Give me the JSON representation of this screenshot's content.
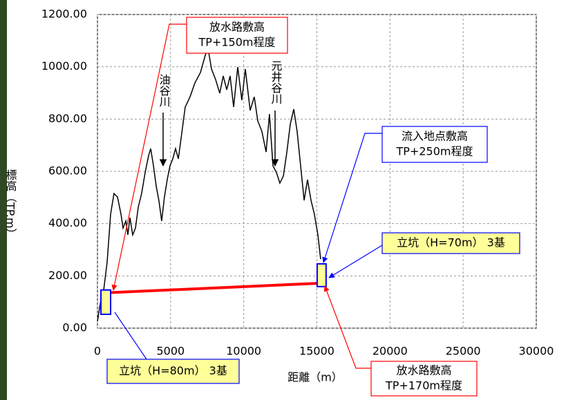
{
  "chart_data": {
    "type": "line",
    "x_label": "距離（m）",
    "y_label": "標高（TP.m）",
    "xlim": [
      0,
      30000
    ],
    "ylim": [
      0,
      1200
    ],
    "xticks": [
      0,
      5000,
      10000,
      15000,
      20000,
      25000,
      30000
    ],
    "yticks": [
      {
        "value": 0,
        "label": "0.00"
      },
      {
        "value": 200,
        "label": "200.00"
      },
      {
        "value": 400,
        "label": "400.00"
      },
      {
        "value": 600,
        "label": "600.00"
      },
      {
        "value": 800,
        "label": "800.00"
      },
      {
        "value": 1000,
        "label": "1000.00"
      },
      {
        "value": 1200,
        "label": "1200.00"
      }
    ],
    "grid": true,
    "x": [
      0,
      190,
      425,
      660,
      900,
      1130,
      1370,
      1610,
      1750,
      1940,
      2080,
      2220,
      2410,
      2600,
      2790,
      3020,
      3260,
      3500,
      3640,
      3830,
      4020,
      4200,
      4390,
      4580,
      4770,
      4960,
      5150,
      5340,
      5530,
      5720,
      6000,
      6330,
      6660,
      7040,
      7370,
      7560,
      7800,
      8080,
      8360,
      8600,
      8840,
      9070,
      9310,
      9590,
      9870,
      10110,
      10440,
      10720,
      10960,
      11240,
      11530,
      11760,
      12000,
      12240,
      12470,
      12710,
      12950,
      13180,
      13420,
      13650,
      13890,
      14130,
      14360,
      14600,
      14830,
      15070,
      15260
    ],
    "series": [
      {
        "color": "#000000",
        "values": [
          26,
          93,
          145,
          251,
          436,
          515,
          502,
          436,
          383,
          410,
          357,
          423,
          357,
          383,
          463,
          515,
          595,
          661,
          687,
          621,
          542,
          489,
          410,
          502,
          568,
          621,
          648,
          687,
          648,
          727,
          846,
          885,
          938,
          978,
          1044,
          1070,
          991,
          951,
          899,
          965,
          912,
          965,
          846,
          999,
          872,
          991,
          833,
          885,
          793,
          753,
          674,
          819,
          621,
          595,
          555,
          582,
          674,
          780,
          838,
          753,
          621,
          489,
          568,
          489,
          436,
          357,
          264
        ]
      }
    ],
    "tunnel": {
      "color": "#ff0000",
      "x": [
        500,
        15300
      ],
      "values": [
        135,
        172
      ]
    },
    "shafts": [
      {
        "x": [
          240,
          900
        ],
        "values": [
          53,
          146
        ]
      },
      {
        "x": [
          15020,
          15630
        ],
        "values": [
          159,
          246
        ]
      }
    ],
    "rivers": [
      "油谷川",
      "元井谷川"
    ],
    "annotations": [
      {
        "lines": [
          "放水路敷高",
          "TP+150m程度"
        ],
        "color": "#ff0000"
      },
      {
        "lines": [
          "流入地点敷高",
          "TP+250m程度"
        ],
        "color": "#0000ff"
      },
      {
        "lines": [
          "立坑（H=70m） 3基"
        ],
        "color": "#0000ff"
      },
      {
        "lines": [
          "立坑（H=80m） 3基"
        ],
        "color": "#0000ff"
      },
      {
        "lines": [
          "放水路敷高",
          "TP+170m程度"
        ],
        "color": "#ff0000"
      }
    ]
  }
}
